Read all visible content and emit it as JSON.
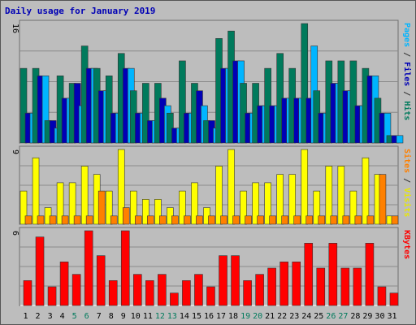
{
  "chart_data": {
    "type": "bar",
    "title": "Daily usage for January 2019",
    "categories": [
      "1",
      "2",
      "3",
      "4",
      "5",
      "6",
      "7",
      "8",
      "9",
      "10",
      "11",
      "12",
      "13",
      "14",
      "15",
      "16",
      "17",
      "18",
      "19",
      "20",
      "21",
      "22",
      "23",
      "24",
      "25",
      "26",
      "27",
      "28",
      "29",
      "30",
      "31"
    ],
    "weekend_days": [
      "5",
      "6",
      "12",
      "13",
      "19",
      "20",
      "26",
      "27"
    ],
    "panels": [
      {
        "id": "pages-files-hits",
        "max_label": "16",
        "ylim": [
          0,
          16
        ],
        "right_label": [
          {
            "text": "Pages",
            "color": "#00b5ff"
          },
          {
            "text": " / ",
            "color": "#333333"
          },
          {
            "text": "Files",
            "color": "#0000b5"
          },
          {
            "text": " / ",
            "color": "#333333"
          },
          {
            "text": "Hits",
            "color": "#007a5c"
          }
        ],
        "series": [
          {
            "name": "Hits",
            "color": "#007a5c",
            "values": [
              10,
              10,
              3,
              9,
              8,
              13,
              10,
              9,
              12,
              7,
              8,
              8,
              4,
              11,
              8,
              3,
              14,
              15,
              8,
              8,
              10,
              12,
              10,
              16,
              7,
              11,
              11,
              11,
              10,
              6,
              1
            ]
          },
          {
            "name": "Files",
            "color": "#0000b5",
            "values": [
              4,
              9,
              3,
              6,
              8,
              10,
              7,
              4,
              10,
              4,
              3,
              6,
              2,
              4,
              7,
              3,
              10,
              11,
              4,
              5,
              5,
              6,
              6,
              6,
              4,
              8,
              7,
              5,
              9,
              4,
              1
            ]
          },
          {
            "name": "Pages",
            "color": "#00b5ff",
            "values": [
              4,
              9,
              2,
              6,
              5,
              10,
              7,
              4,
              10,
              4,
              3,
              5,
              2,
              4,
              5,
              2,
              10,
              11,
              4,
              5,
              5,
              6,
              6,
              13,
              4,
              8,
              7,
              5,
              9,
              4,
              1
            ]
          }
        ]
      },
      {
        "id": "visits-sites",
        "max_label": "9",
        "ylim": [
          0,
          9
        ],
        "right_label": [
          {
            "text": "Sites",
            "color": "#ff8000"
          },
          {
            "text": " / ",
            "color": "#333333"
          },
          {
            "text": "Visits",
            "color": "#e8e800"
          }
        ],
        "series": [
          {
            "name": "Visits",
            "color": "#ffff00",
            "values": [
              4,
              8,
              2,
              5,
              5,
              7,
              6,
              4,
              9,
              4,
              3,
              3,
              2,
              4,
              5,
              2,
              7,
              9,
              4,
              5,
              5,
              6,
              6,
              9,
              4,
              7,
              7,
              4,
              8,
              6,
              1
            ]
          },
          {
            "name": "Sites",
            "color": "#ff8000",
            "values": [
              1,
              1,
              1,
              1,
              1,
              1,
              4,
              1,
              2,
              1,
              1,
              1,
              1,
              1,
              1,
              1,
              1,
              1,
              1,
              1,
              1,
              1,
              1,
              1,
              1,
              1,
              1,
              1,
              1,
              6,
              1
            ]
          }
        ]
      },
      {
        "id": "kbytes",
        "max_label": "6",
        "ylim": [
          0,
          6
        ],
        "right_label": [
          {
            "text": "KBytes",
            "color": "#ff0000"
          }
        ],
        "series": [
          {
            "name": "KBytes",
            "color": "#ff0000",
            "values": [
              2,
              5.5,
              1.5,
              3.5,
              2.5,
              6,
              4,
              2,
              6,
              2.5,
              2,
              2.5,
              1,
              2,
              2.5,
              1.5,
              4,
              4,
              2,
              2.5,
              3,
              3.5,
              3.5,
              5,
              3,
              5,
              3,
              3,
              5,
              1.5,
              1
            ]
          }
        ]
      }
    ]
  }
}
